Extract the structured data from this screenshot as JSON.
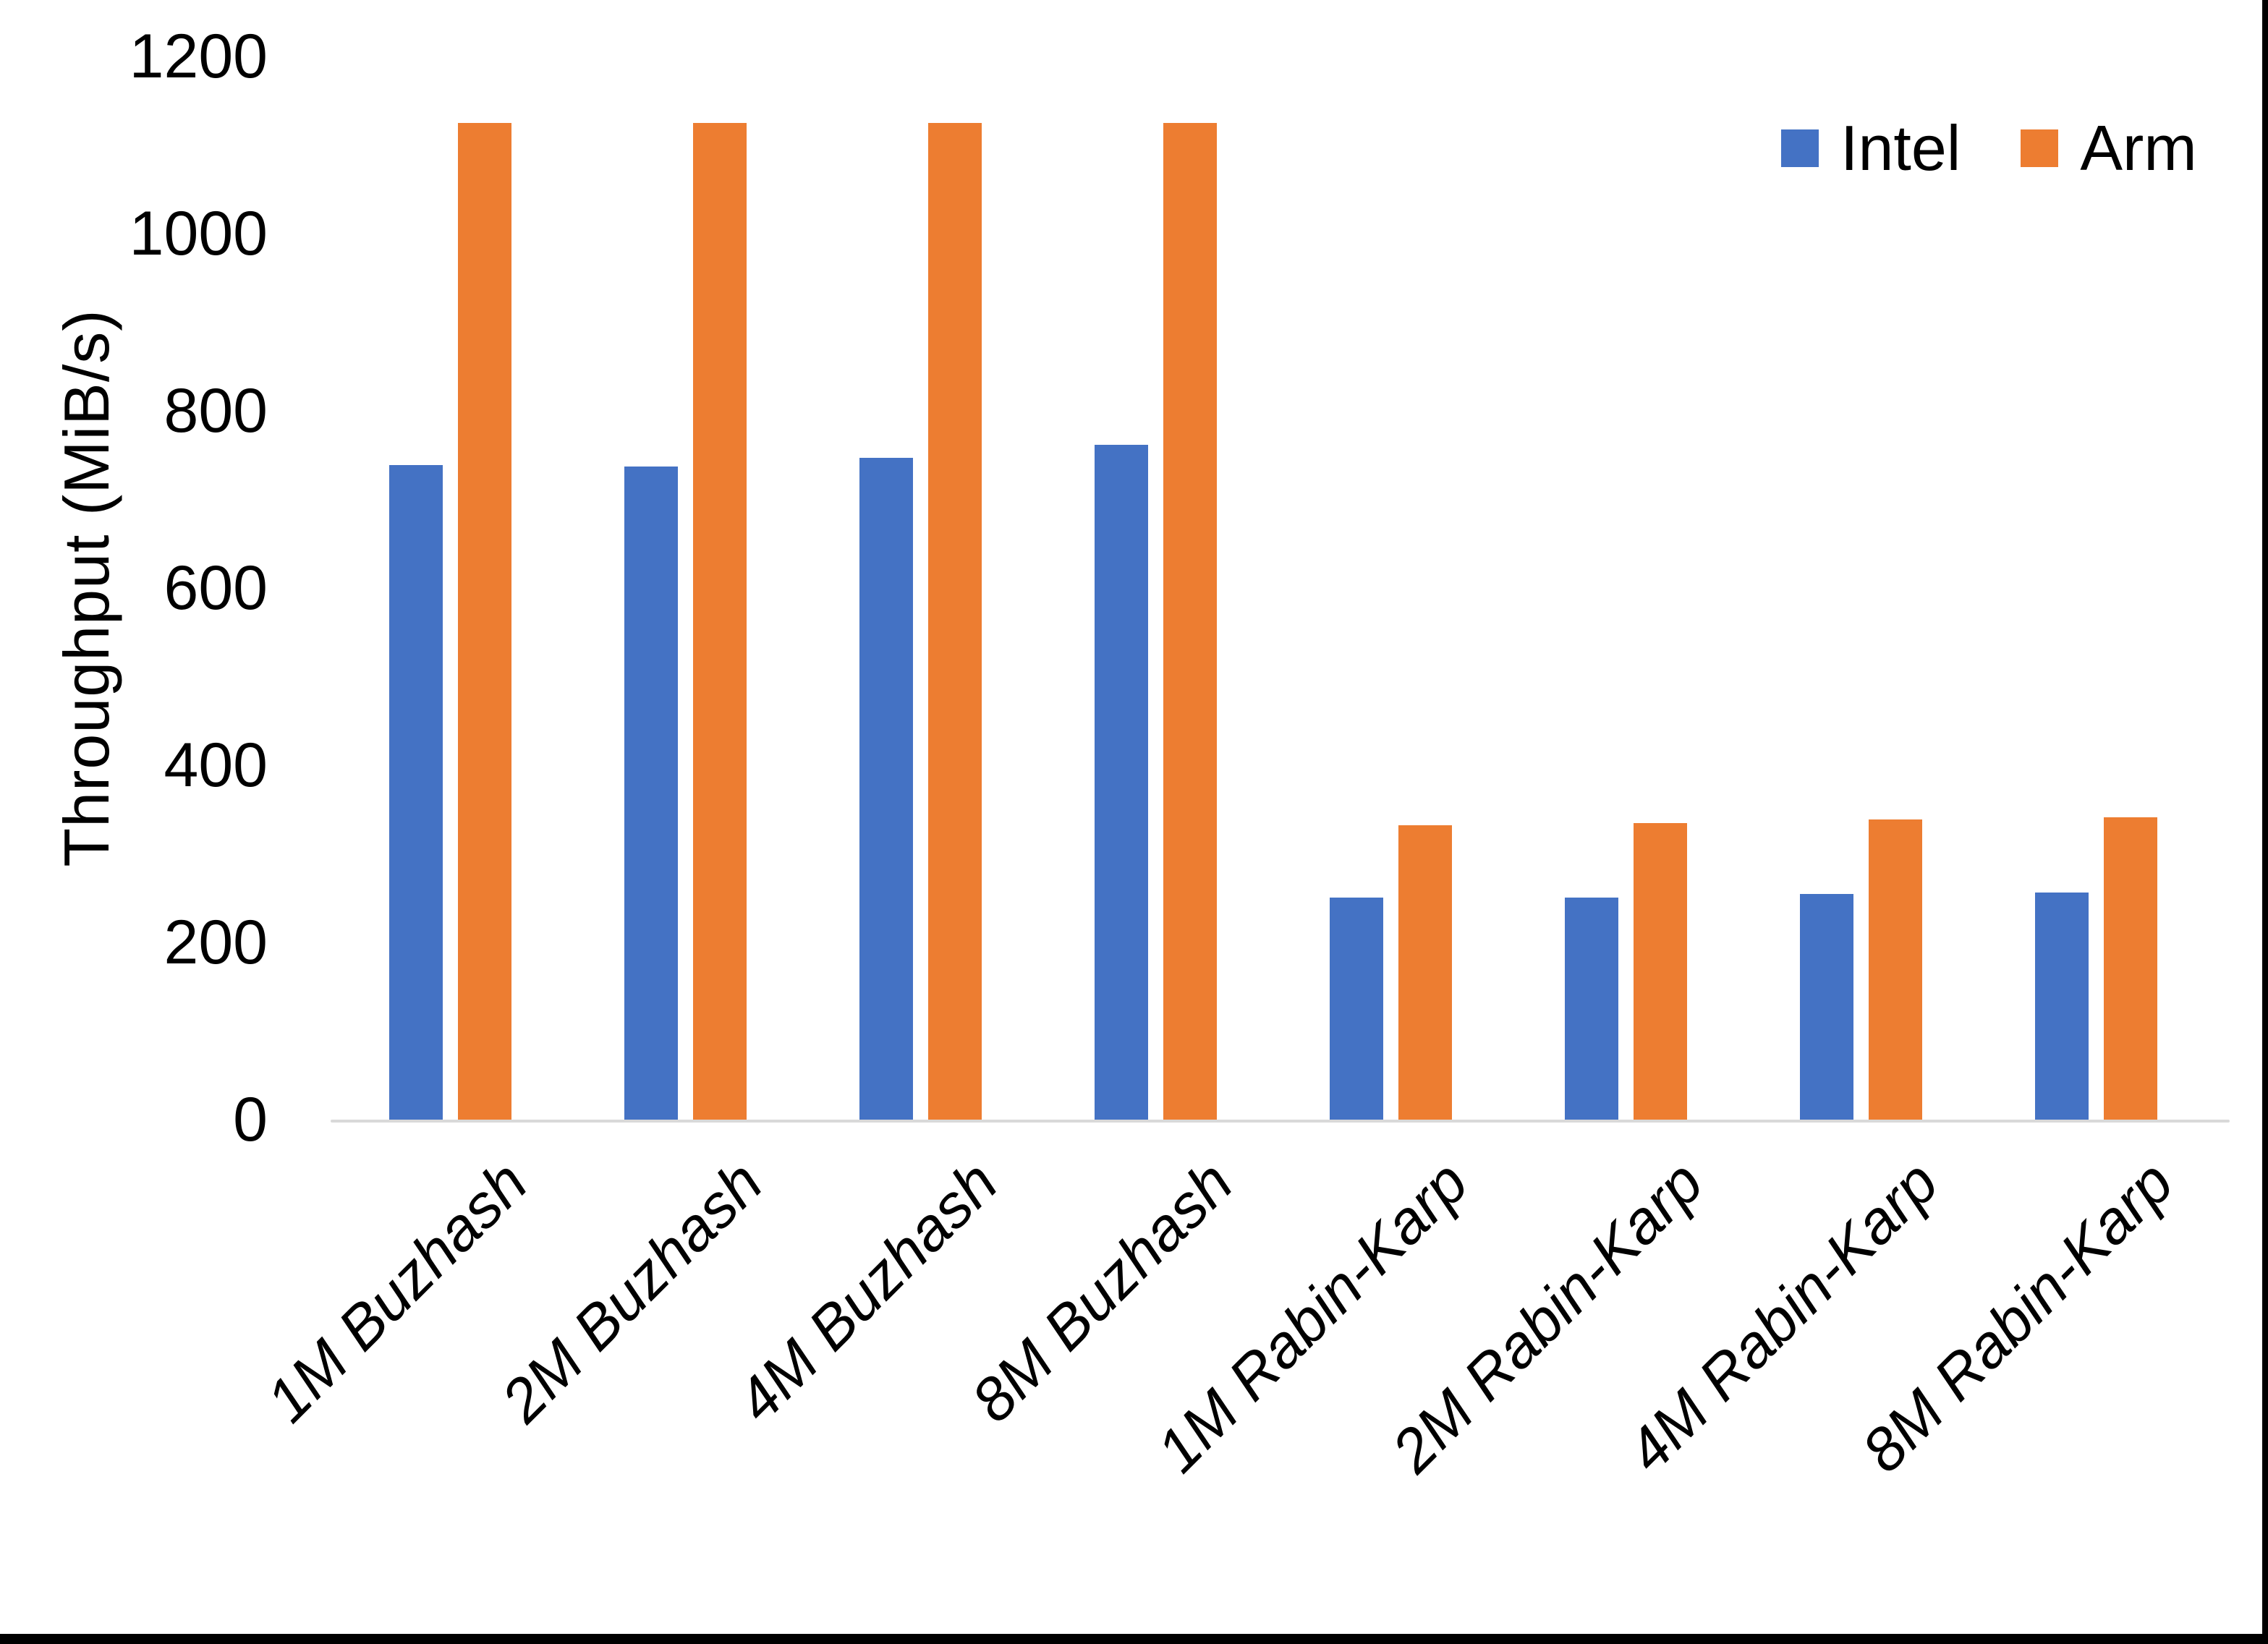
{
  "chart": {
    "y_axis": {
      "title": "Throughput (MiB/s)",
      "tick_labels": [
        "0",
        "200",
        "400",
        "600",
        "800",
        "1000",
        "1200"
      ],
      "min": 0,
      "max": 1200,
      "step": 200
    },
    "x_axis": {
      "label_rotation_deg": 45,
      "label_style": "italic"
    },
    "legend_position": "top-right"
  },
  "chart_data": {
    "type": "bar",
    "categories": [
      "1M Buzhash",
      "2M Buzhash",
      "4M Buzhash",
      "8M Buzhash",
      "1M Rabin-Karp",
      "2M Rabin-Karp",
      "4M Rabin-Karp",
      "8M Rabin-Karp"
    ],
    "series": [
      {
        "name": "Intel",
        "color": "#4472C4",
        "values": [
          739,
          737,
          747,
          762,
          251,
          251,
          255,
          256
        ]
      },
      {
        "name": "Arm",
        "color": "#ED7D31",
        "values": [
          1125,
          1125,
          1125,
          1125,
          332,
          335,
          339,
          341
        ]
      }
    ],
    "title": "",
    "xlabel": "",
    "ylabel": "Throughput (MiB/s)",
    "ylim": [
      0,
      1200
    ],
    "grid": false,
    "legend_position": "top-right"
  },
  "colors": {
    "background": "#FFFFFF",
    "text": "#000000",
    "axis_line": "#D9D9D9",
    "border": "#000000",
    "intel": "#4472C4",
    "arm": "#ED7D31"
  }
}
